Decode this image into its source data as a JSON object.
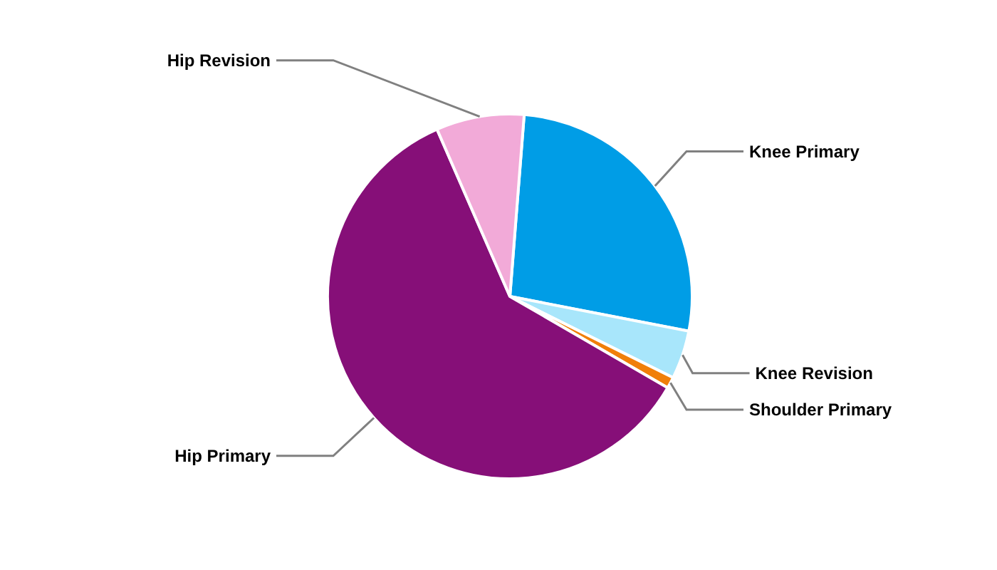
{
  "chart_data": {
    "type": "pie",
    "categories": [
      "Knee Primary",
      "Knee Revision",
      "Shoulder Primary",
      "Hip Primary",
      "Hip Revision"
    ],
    "values": [
      26.8,
      4.3,
      1,
      60.1,
      7.8
    ],
    "colors": [
      "#009de6",
      "#a8e6fb",
      "#f07f09",
      "#860f78",
      "#f2aad8"
    ],
    "legend": false
  }
}
